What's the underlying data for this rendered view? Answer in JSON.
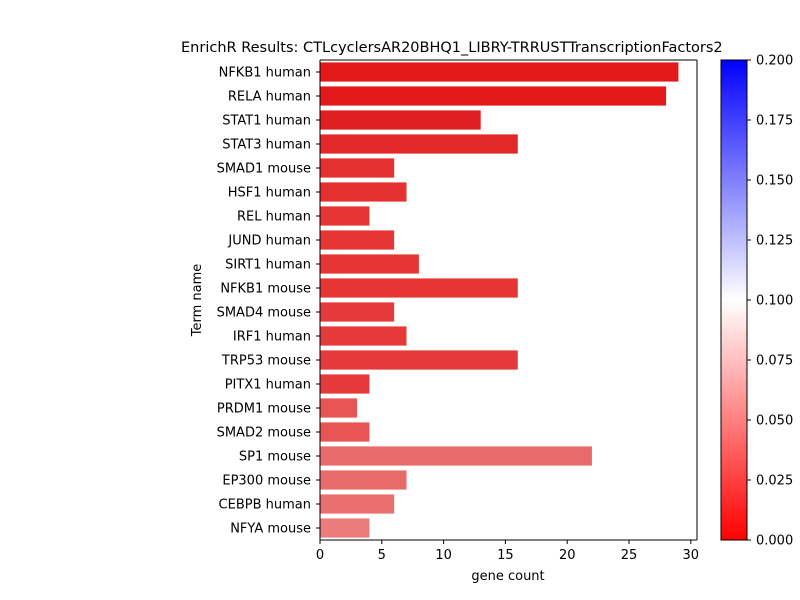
{
  "chart_data": {
    "type": "bar",
    "orientation": "horizontal",
    "title": "EnrichR Results: CTLcyclersAR20BHQ1_LIBRY-TRRUSTTranscriptionFactors2",
    "xlabel": "gene count",
    "ylabel": "Term name",
    "xlim": [
      0,
      30.5
    ],
    "xticks": [
      0,
      5,
      10,
      15,
      20,
      25,
      30
    ],
    "categories": [
      "NFKB1 human",
      "RELA human",
      "STAT1 human",
      "STAT3 human",
      "SMAD1 mouse",
      "HSF1 human",
      "REL human",
      "JUND human",
      "SIRT1 human",
      "NFKB1 mouse",
      "SMAD4 mouse",
      "IRF1 human",
      "TRP53 mouse",
      "PITX1 human",
      "PRDM1 mouse",
      "SMAD2 mouse",
      "SP1 mouse",
      "EP300 mouse",
      "CEBPB human",
      "NFYA mouse"
    ],
    "values": [
      29,
      28,
      13,
      16,
      6,
      7,
      4,
      6,
      8,
      16,
      6,
      7,
      16,
      4,
      3,
      4,
      22,
      7,
      6,
      4
    ],
    "bar_colors": [
      "#e41a1a",
      "#e41a1a",
      "#e02020",
      "#e32828",
      "#e53030",
      "#e53030",
      "#e53535",
      "#e53535",
      "#e53535",
      "#e53535",
      "#e53a3a",
      "#e53a3a",
      "#e53a3a",
      "#e53a3a",
      "#e85555",
      "#e85555",
      "#e86a6a",
      "#e86a6a",
      "#ea7070",
      "#ec7c7c"
    ],
    "colorbar": {
      "range": [
        0.0,
        0.2
      ],
      "ticks": [
        "0.000",
        "0.025",
        "0.050",
        "0.075",
        "0.100",
        "0.125",
        "0.150",
        "0.175",
        "0.200"
      ],
      "colors": [
        "#ff0000",
        "#ffffff",
        "#0000ff"
      ]
    },
    "grid": false,
    "legend": "none"
  }
}
